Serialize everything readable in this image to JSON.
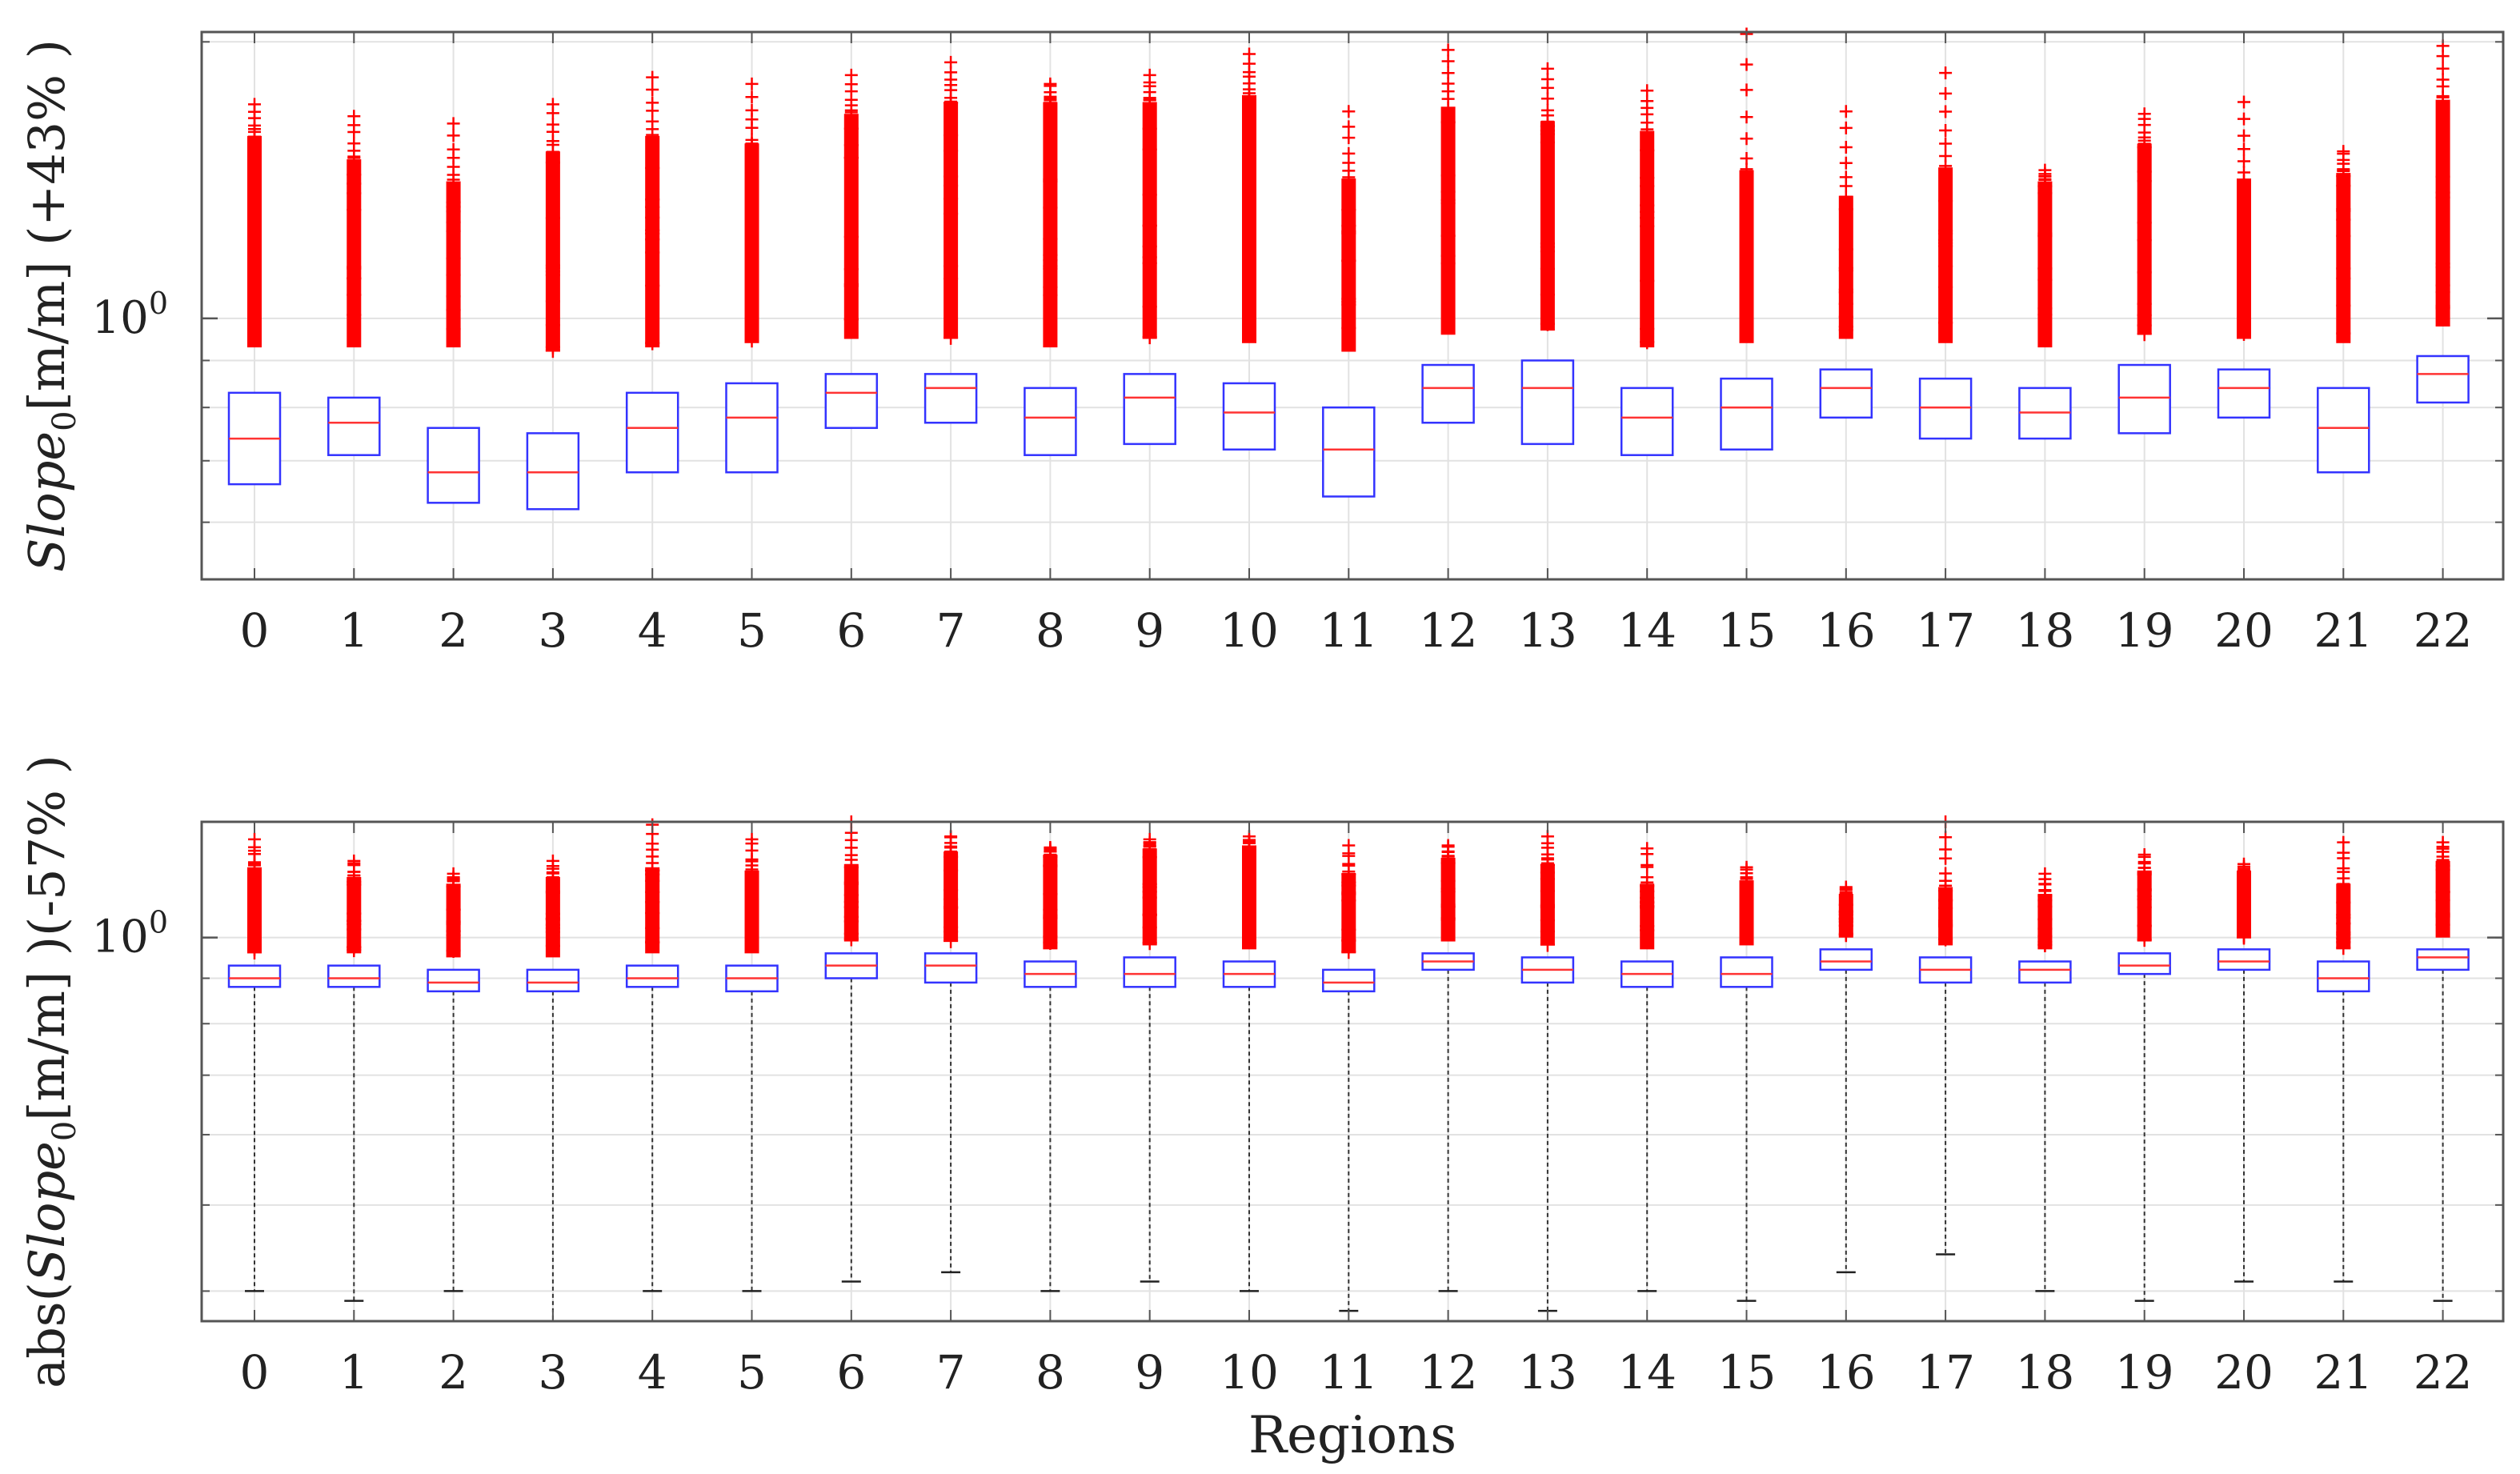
{
  "figure": {
    "xlabel": "Regions"
  },
  "chart_data": [
    {
      "type": "box",
      "panel": "top",
      "ylabel_parts": [
        "Slope",
        "0",
        "[m/m] (+43% )"
      ],
      "ytick_labels": [
        {
          "base": "10",
          "exp": "0"
        }
      ],
      "yscale": "log",
      "ylim": [
        0.52,
        2.05
      ],
      "grid": true,
      "box_color": "#3333ff",
      "median_color": "#ff3333",
      "outlier_color": "#ff0000",
      "categories": [
        "0",
        "1",
        "2",
        "3",
        "4",
        "5",
        "6",
        "7",
        "8",
        "9",
        "10",
        "11",
        "12",
        "13",
        "14",
        "15",
        "16",
        "17",
        "18",
        "19",
        "20",
        "21",
        "22"
      ],
      "q1": [
        0.66,
        0.71,
        0.63,
        0.62,
        0.68,
        0.68,
        0.76,
        0.77,
        0.71,
        0.73,
        0.72,
        0.64,
        0.77,
        0.73,
        0.71,
        0.72,
        0.78,
        0.74,
        0.74,
        0.75,
        0.78,
        0.68,
        0.81
      ],
      "median": [
        0.74,
        0.77,
        0.68,
        0.68,
        0.76,
        0.78,
        0.83,
        0.84,
        0.78,
        0.82,
        0.79,
        0.72,
        0.84,
        0.84,
        0.78,
        0.8,
        0.84,
        0.8,
        0.79,
        0.82,
        0.84,
        0.76,
        0.87
      ],
      "q3": [
        0.83,
        0.82,
        0.76,
        0.75,
        0.83,
        0.85,
        0.87,
        0.87,
        0.84,
        0.87,
        0.85,
        0.8,
        0.89,
        0.9,
        0.84,
        0.86,
        0.88,
        0.86,
        0.84,
        0.89,
        0.88,
        0.84,
        0.91
      ],
      "outlier_min": [
        0.93,
        0.93,
        0.93,
        0.92,
        0.93,
        0.94,
        0.95,
        0.95,
        0.93,
        0.95,
        0.94,
        0.92,
        0.96,
        0.97,
        0.93,
        0.94,
        0.95,
        0.94,
        0.93,
        0.96,
        0.95,
        0.94,
        0.98
      ],
      "outlier_dense_max": [
        1.58,
        1.49,
        1.41,
        1.52,
        1.58,
        1.55,
        1.67,
        1.72,
        1.72,
        1.72,
        1.75,
        1.42,
        1.7,
        1.64,
        1.6,
        1.45,
        1.36,
        1.46,
        1.41,
        1.55,
        1.42,
        1.44,
        1.73
      ],
      "outlier_max": [
        1.71,
        1.66,
        1.63,
        1.71,
        1.83,
        1.8,
        1.84,
        1.9,
        1.8,
        1.84,
        1.94,
        1.68,
        1.96,
        1.87,
        1.77,
        2.04,
        1.68,
        1.85,
        1.45,
        1.67,
        1.72,
        1.52,
        1.98
      ]
    },
    {
      "type": "box",
      "panel": "bottom",
      "ylabel_parts": [
        "abs(",
        "Slope",
        "0",
        "[m/m] )(-57% )"
      ],
      "ytick_labels": [
        {
          "base": "10",
          "exp": "0"
        }
      ],
      "yscale": "log",
      "ylim": [
        0.37,
        1.35
      ],
      "grid": true,
      "box_color": "#3333ff",
      "median_color": "#ff3333",
      "outlier_color": "#ff0000",
      "whisker_color": "#333333",
      "categories": [
        "0",
        "1",
        "2",
        "3",
        "4",
        "5",
        "6",
        "7",
        "8",
        "9",
        "10",
        "11",
        "12",
        "13",
        "14",
        "15",
        "16",
        "17",
        "18",
        "19",
        "20",
        "21",
        "22"
      ],
      "whisker_low": [
        0.4,
        0.39,
        0.4,
        0.37,
        0.4,
        0.4,
        0.41,
        0.42,
        0.4,
        0.41,
        0.4,
        0.38,
        0.4,
        0.38,
        0.4,
        0.39,
        0.42,
        0.44,
        0.4,
        0.39,
        0.41,
        0.41,
        0.39
      ],
      "q1": [
        0.88,
        0.88,
        0.87,
        0.87,
        0.88,
        0.87,
        0.9,
        0.89,
        0.88,
        0.88,
        0.88,
        0.87,
        0.92,
        0.89,
        0.88,
        0.88,
        0.92,
        0.89,
        0.89,
        0.91,
        0.92,
        0.87,
        0.92
      ],
      "median": [
        0.9,
        0.9,
        0.89,
        0.89,
        0.9,
        0.9,
        0.93,
        0.93,
        0.91,
        0.91,
        0.91,
        0.89,
        0.94,
        0.92,
        0.91,
        0.91,
        0.94,
        0.92,
        0.92,
        0.93,
        0.94,
        0.9,
        0.95
      ],
      "q3": [
        0.93,
        0.93,
        0.92,
        0.92,
        0.93,
        0.93,
        0.96,
        0.96,
        0.94,
        0.95,
        0.94,
        0.92,
        0.96,
        0.95,
        0.94,
        0.95,
        0.97,
        0.95,
        0.94,
        0.96,
        0.97,
        0.94,
        0.97
      ],
      "outlier_min": [
        0.96,
        0.96,
        0.95,
        0.95,
        0.96,
        0.96,
        0.99,
        0.99,
        0.97,
        0.98,
        0.97,
        0.96,
        0.99,
        0.98,
        0.97,
        0.98,
        1.0,
        0.98,
        0.97,
        0.99,
        1.0,
        0.97,
        1.0
      ],
      "outlier_dense_max": [
        1.2,
        1.17,
        1.15,
        1.17,
        1.2,
        1.19,
        1.21,
        1.25,
        1.24,
        1.26,
        1.27,
        1.18,
        1.23,
        1.21,
        1.15,
        1.16,
        1.12,
        1.14,
        1.12,
        1.19,
        1.19,
        1.15,
        1.22
      ],
      "outlier_max": [
        1.29,
        1.22,
        1.18,
        1.22,
        1.34,
        1.29,
        1.35,
        1.3,
        1.26,
        1.29,
        1.3,
        1.27,
        1.27,
        1.3,
        1.26,
        1.2,
        1.14,
        1.35,
        1.18,
        1.24,
        1.21,
        1.28,
        1.28
      ]
    }
  ]
}
